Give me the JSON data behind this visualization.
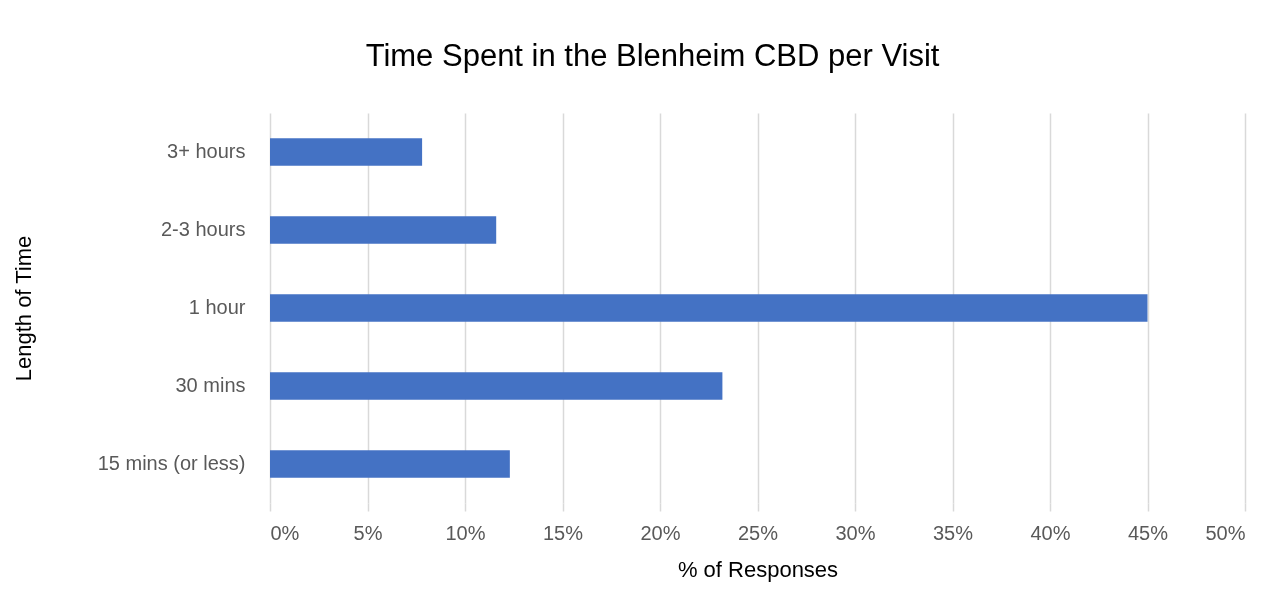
{
  "chart_data": {
    "type": "bar",
    "orientation": "horizontal",
    "title": "Time Spent in the Blenheim CBD per Visit",
    "xlabel": "% of Responses",
    "ylabel": "Length of Time",
    "categories": [
      "3+ hours",
      "2-3 hours",
      "1 hour",
      "30 mins",
      "15 mins (or less)"
    ],
    "values": [
      7.8,
      11.6,
      45.0,
      23.2,
      12.3
    ],
    "color": "#4472c4",
    "xlim": [
      0,
      50
    ],
    "xticks": [
      {
        "value": 0,
        "label": "0%"
      },
      {
        "value": 5,
        "label": "5%"
      },
      {
        "value": 10,
        "label": "10%"
      },
      {
        "value": 15,
        "label": "15%"
      },
      {
        "value": 20,
        "label": "20%"
      },
      {
        "value": 25,
        "label": "25%"
      },
      {
        "value": 30,
        "label": "30%"
      },
      {
        "value": 35,
        "label": "35%"
      },
      {
        "value": 40,
        "label": "40%"
      },
      {
        "value": 45,
        "label": "45%"
      },
      {
        "value": 50,
        "label": "50%"
      }
    ],
    "grid": "x"
  }
}
